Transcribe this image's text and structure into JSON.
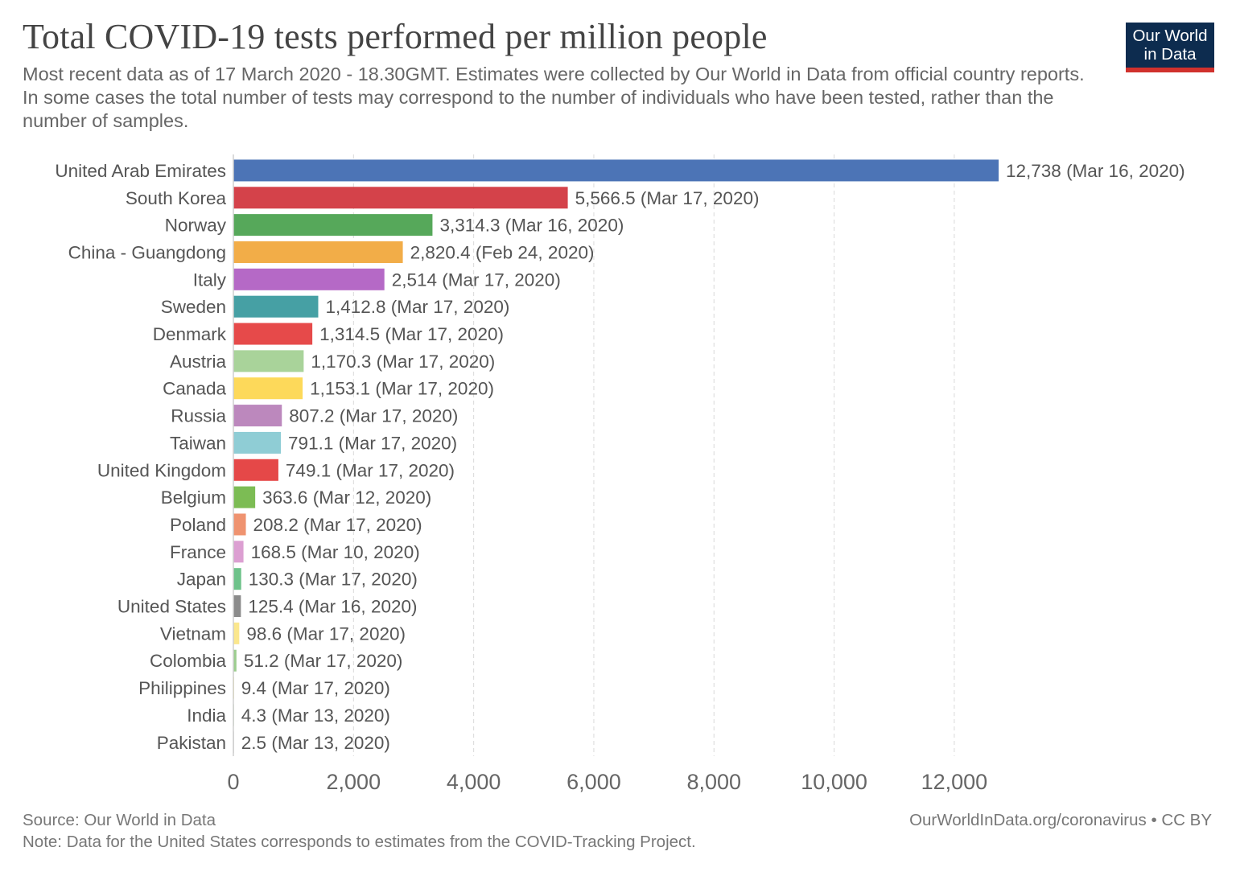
{
  "title": "Total COVID-19 tests performed per million people",
  "subtitle": "Most recent data as of 17 March 2020 - 18.30GMT. Estimates were collected by Our World in Data from official country reports. In some cases the total number of tests may correspond to the number of individuals who have been tested, rather than the number of samples.",
  "logo": {
    "line1": "Our World",
    "line2": "in Data",
    "bg_color": "#0d2c4f",
    "accent_color": "#d0312d"
  },
  "footer": {
    "source": "Source: Our World in Data",
    "note": "Note: Data for the United States corresponds to estimates from the COVID-Tracking Project.",
    "link": "OurWorldInData.org/coronavirus • CC BY"
  },
  "chart_data": {
    "type": "bar",
    "orientation": "horizontal",
    "grid": true,
    "xlim": [
      0,
      12738
    ],
    "x_ticks": [
      0,
      2000,
      4000,
      6000,
      8000,
      10000,
      12000
    ],
    "x_tick_labels": [
      "0",
      "2,000",
      "4,000",
      "6,000",
      "8,000",
      "10,000",
      "12,000"
    ],
    "categories": [
      "United Arab Emirates",
      "South Korea",
      "Norway",
      "China - Guangdong",
      "Italy",
      "Sweden",
      "Denmark",
      "Austria",
      "Canada",
      "Russia",
      "Taiwan",
      "United Kingdom",
      "Belgium",
      "Poland",
      "France",
      "Japan",
      "United States",
      "Vietnam",
      "Colombia",
      "Philippines",
      "India",
      "Pakistan"
    ],
    "values": [
      12738,
      5566.5,
      3314.3,
      2820.4,
      2514,
      1412.8,
      1314.5,
      1170.3,
      1153.1,
      807.2,
      791.1,
      749.1,
      363.6,
      208.2,
      168.5,
      130.3,
      125.4,
      98.6,
      51.2,
      9.4,
      4.3,
      2.5
    ],
    "value_labels": [
      "12,738 (Mar 16, 2020)",
      "5,566.5 (Mar 17, 2020)",
      "3,314.3 (Mar 16, 2020)",
      "2,820.4 (Feb 24, 2020)",
      "2,514 (Mar 17, 2020)",
      "1,412.8 (Mar 17, 2020)",
      "1,314.5 (Mar 17, 2020)",
      "1,170.3 (Mar 17, 2020)",
      "1,153.1 (Mar 17, 2020)",
      "807.2 (Mar 17, 2020)",
      "791.1 (Mar 17, 2020)",
      "749.1 (Mar 17, 2020)",
      "363.6 (Mar 12, 2020)",
      "208.2 (Mar 17, 2020)",
      "168.5 (Mar 10, 2020)",
      "130.3 (Mar 17, 2020)",
      "125.4 (Mar 16, 2020)",
      "98.6 (Mar 17, 2020)",
      "51.2 (Mar 17, 2020)",
      "9.4 (Mar 17, 2020)",
      "4.3 (Mar 13, 2020)",
      "2.5 (Mar 13, 2020)"
    ],
    "colors": [
      "#4c74b6",
      "#d4424a",
      "#56a85a",
      "#f2ad48",
      "#b569c6",
      "#46a0a4",
      "#e64a4a",
      "#a9d39a",
      "#fdd95a",
      "#bc88bd",
      "#8fcdd5",
      "#e54848",
      "#7cbc54",
      "#ef9370",
      "#dc9fd2",
      "#6ec28a",
      "#8b8b8b",
      "#fbe78d",
      "#9ccd8f",
      "#f8e36a",
      "#b4d8a4",
      "#c6c6c6"
    ]
  }
}
